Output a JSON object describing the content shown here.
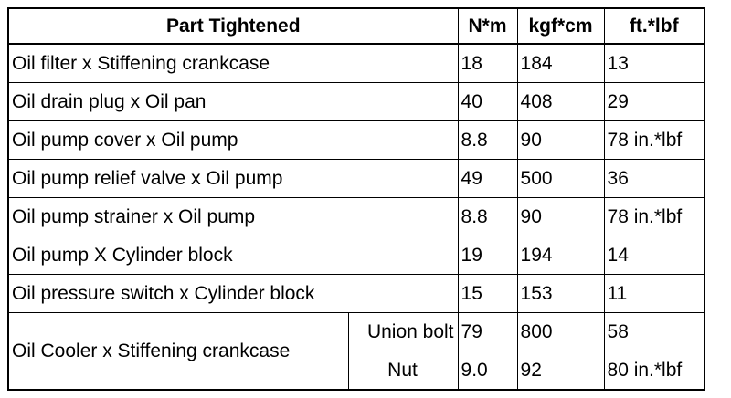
{
  "table": {
    "header": [
      "Part Tightened",
      "N*m",
      "kgf*cm",
      "ft.*lbf"
    ],
    "rows": [
      [
        "Oil filter x Stiffening crankcase",
        "18",
        "184",
        "13"
      ],
      [
        "Oil drain plug x Oil pan",
        "40",
        "408",
        "29"
      ],
      [
        "Oil pump cover x Oil pump",
        "8.8",
        "90",
        "78 in.*lbf"
      ],
      [
        "Oil pump relief valve x Oil pump",
        "49",
        "500",
        "36"
      ],
      [
        "Oil pump strainer x Oil pump",
        "8.8",
        "90",
        "78 in.*lbf"
      ],
      [
        "Oil pump X Cylinder block",
        "19",
        "194",
        "14"
      ],
      [
        "Oil pressure switch x Cylinder block",
        "15",
        "153",
        "11"
      ]
    ],
    "group": {
      "part": "Oil Cooler x Stiffening crankcase",
      "items": [
        [
          "Union bolt",
          "79",
          "800",
          "58"
        ],
        [
          "Nut",
          "9.0",
          "92",
          "80 in.*lbf"
        ]
      ]
    }
  }
}
